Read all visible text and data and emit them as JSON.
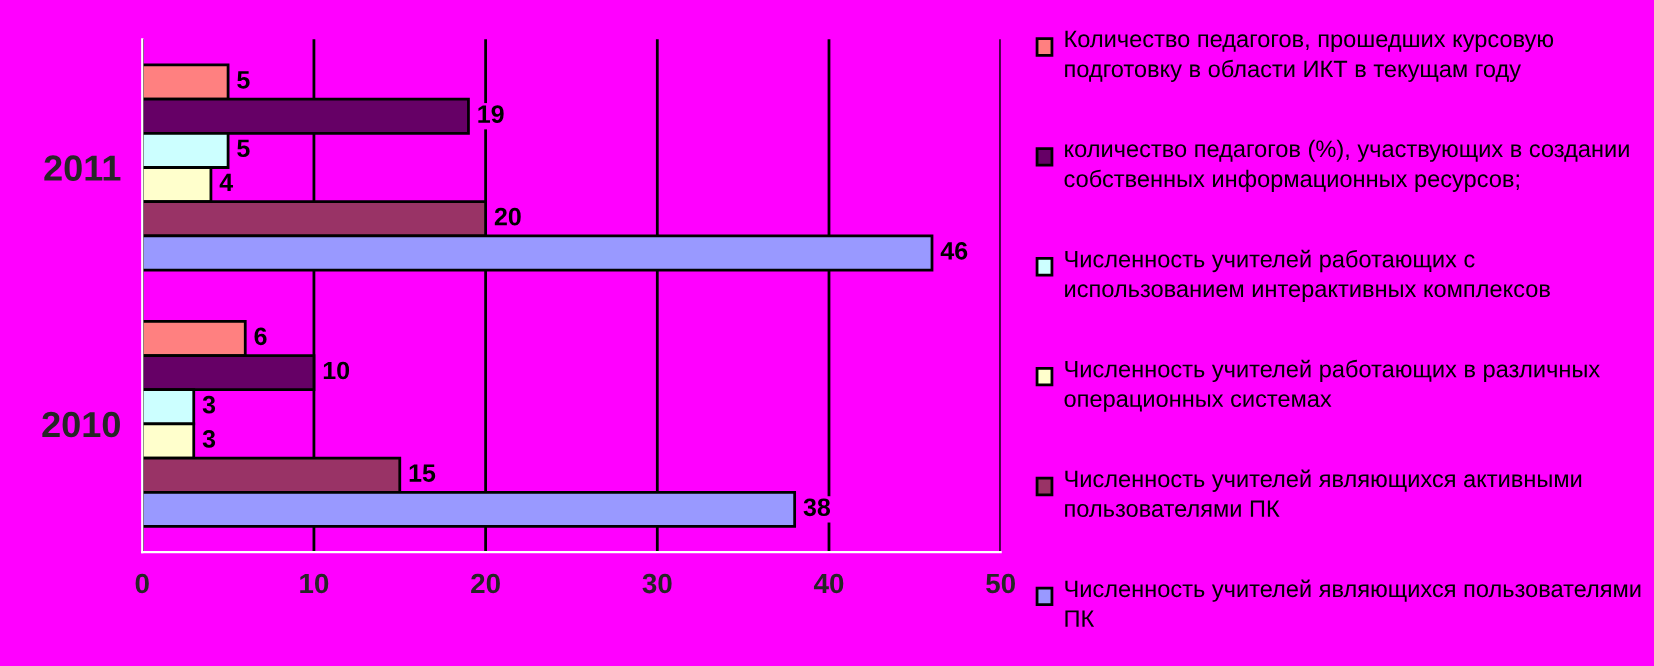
{
  "chart_data": {
    "type": "bar",
    "orientation": "horizontal",
    "categories": [
      "2011",
      "2010"
    ],
    "series": [
      {
        "name": "Количество педагогов, прошедших курсовую подготовку в области ИКТ в текущам году",
        "color": "#ff8080",
        "values": [
          5,
          6
        ]
      },
      {
        "name": "количество педагогов (%), участвующих в создании собственных информационных ресурсов;",
        "color": "#660066",
        "values": [
          19,
          10
        ]
      },
      {
        "name": "Численность учителей работающих с использованием интерактивных комплексов",
        "color": "#ccffff",
        "values": [
          5,
          3
        ]
      },
      {
        "name": "Численность учителей работающих в различных операционных системах",
        "color": "#ffffcc",
        "values": [
          4,
          3
        ]
      },
      {
        "name": "Численность учителей являющихся активными пользователями ПК",
        "color": "#993366",
        "values": [
          20,
          15
        ]
      },
      {
        "name": "Численность учителей являющихся пользователями ПК",
        "color": "#9999ff",
        "values": [
          46,
          38
        ]
      }
    ],
    "xlim": [
      0,
      50
    ],
    "xticks": [
      0,
      10,
      20,
      30,
      40,
      50
    ],
    "grid": "x",
    "legend": "right",
    "data_labels": true
  }
}
